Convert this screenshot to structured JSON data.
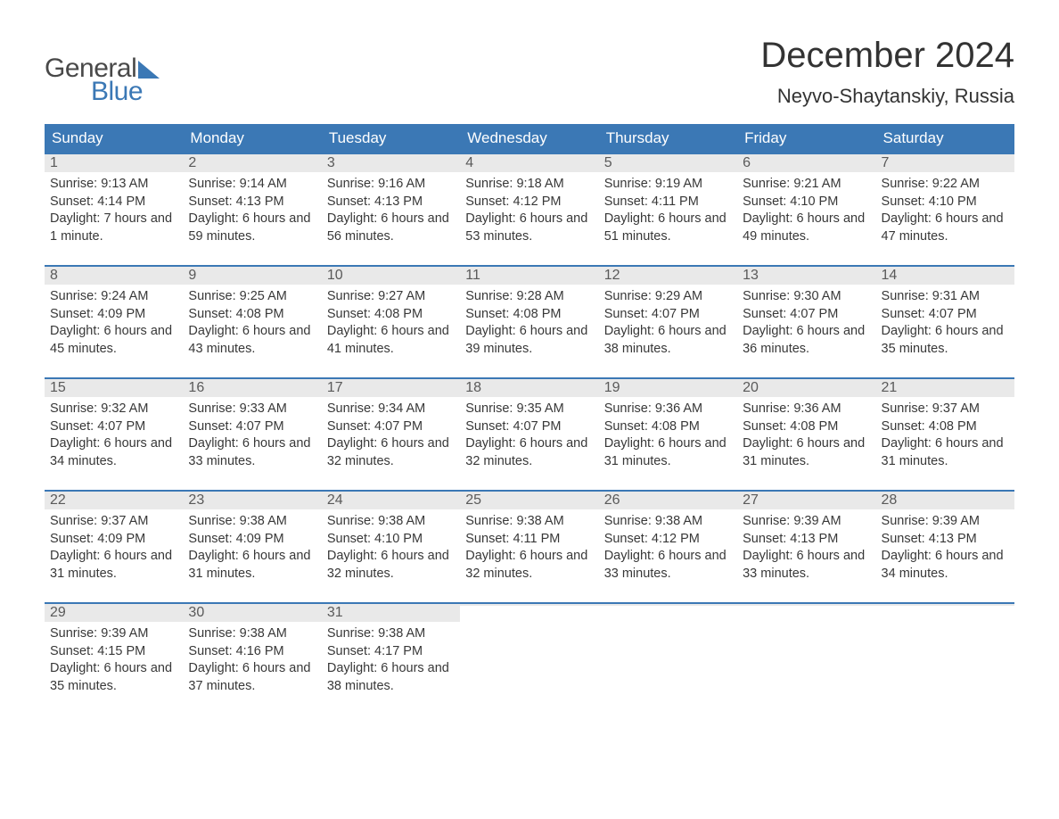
{
  "brand": {
    "word1": "General",
    "word2": "Blue"
  },
  "title": "December 2024",
  "location": "Neyvo-Shaytanskiy, Russia",
  "colors": {
    "brand_blue": "#3b78b5",
    "header_text": "#333333",
    "day_num_bg": "#e9e9e9",
    "body_text": "#383838",
    "background": "#ffffff"
  },
  "weekdays": [
    "Sunday",
    "Monday",
    "Tuesday",
    "Wednesday",
    "Thursday",
    "Friday",
    "Saturday"
  ],
  "weeks": [
    [
      {
        "n": "1",
        "sunrise": "Sunrise: 9:13 AM",
        "sunset": "Sunset: 4:14 PM",
        "daylight": "Daylight: 7 hours and 1 minute."
      },
      {
        "n": "2",
        "sunrise": "Sunrise: 9:14 AM",
        "sunset": "Sunset: 4:13 PM",
        "daylight": "Daylight: 6 hours and 59 minutes."
      },
      {
        "n": "3",
        "sunrise": "Sunrise: 9:16 AM",
        "sunset": "Sunset: 4:13 PM",
        "daylight": "Daylight: 6 hours and 56 minutes."
      },
      {
        "n": "4",
        "sunrise": "Sunrise: 9:18 AM",
        "sunset": "Sunset: 4:12 PM",
        "daylight": "Daylight: 6 hours and 53 minutes."
      },
      {
        "n": "5",
        "sunrise": "Sunrise: 9:19 AM",
        "sunset": "Sunset: 4:11 PM",
        "daylight": "Daylight: 6 hours and 51 minutes."
      },
      {
        "n": "6",
        "sunrise": "Sunrise: 9:21 AM",
        "sunset": "Sunset: 4:10 PM",
        "daylight": "Daylight: 6 hours and 49 minutes."
      },
      {
        "n": "7",
        "sunrise": "Sunrise: 9:22 AM",
        "sunset": "Sunset: 4:10 PM",
        "daylight": "Daylight: 6 hours and 47 minutes."
      }
    ],
    [
      {
        "n": "8",
        "sunrise": "Sunrise: 9:24 AM",
        "sunset": "Sunset: 4:09 PM",
        "daylight": "Daylight: 6 hours and 45 minutes."
      },
      {
        "n": "9",
        "sunrise": "Sunrise: 9:25 AM",
        "sunset": "Sunset: 4:08 PM",
        "daylight": "Daylight: 6 hours and 43 minutes."
      },
      {
        "n": "10",
        "sunrise": "Sunrise: 9:27 AM",
        "sunset": "Sunset: 4:08 PM",
        "daylight": "Daylight: 6 hours and 41 minutes."
      },
      {
        "n": "11",
        "sunrise": "Sunrise: 9:28 AM",
        "sunset": "Sunset: 4:08 PM",
        "daylight": "Daylight: 6 hours and 39 minutes."
      },
      {
        "n": "12",
        "sunrise": "Sunrise: 9:29 AM",
        "sunset": "Sunset: 4:07 PM",
        "daylight": "Daylight: 6 hours and 38 minutes."
      },
      {
        "n": "13",
        "sunrise": "Sunrise: 9:30 AM",
        "sunset": "Sunset: 4:07 PM",
        "daylight": "Daylight: 6 hours and 36 minutes."
      },
      {
        "n": "14",
        "sunrise": "Sunrise: 9:31 AM",
        "sunset": "Sunset: 4:07 PM",
        "daylight": "Daylight: 6 hours and 35 minutes."
      }
    ],
    [
      {
        "n": "15",
        "sunrise": "Sunrise: 9:32 AM",
        "sunset": "Sunset: 4:07 PM",
        "daylight": "Daylight: 6 hours and 34 minutes."
      },
      {
        "n": "16",
        "sunrise": "Sunrise: 9:33 AM",
        "sunset": "Sunset: 4:07 PM",
        "daylight": "Daylight: 6 hours and 33 minutes."
      },
      {
        "n": "17",
        "sunrise": "Sunrise: 9:34 AM",
        "sunset": "Sunset: 4:07 PM",
        "daylight": "Daylight: 6 hours and 32 minutes."
      },
      {
        "n": "18",
        "sunrise": "Sunrise: 9:35 AM",
        "sunset": "Sunset: 4:07 PM",
        "daylight": "Daylight: 6 hours and 32 minutes."
      },
      {
        "n": "19",
        "sunrise": "Sunrise: 9:36 AM",
        "sunset": "Sunset: 4:08 PM",
        "daylight": "Daylight: 6 hours and 31 minutes."
      },
      {
        "n": "20",
        "sunrise": "Sunrise: 9:36 AM",
        "sunset": "Sunset: 4:08 PM",
        "daylight": "Daylight: 6 hours and 31 minutes."
      },
      {
        "n": "21",
        "sunrise": "Sunrise: 9:37 AM",
        "sunset": "Sunset: 4:08 PM",
        "daylight": "Daylight: 6 hours and 31 minutes."
      }
    ],
    [
      {
        "n": "22",
        "sunrise": "Sunrise: 9:37 AM",
        "sunset": "Sunset: 4:09 PM",
        "daylight": "Daylight: 6 hours and 31 minutes."
      },
      {
        "n": "23",
        "sunrise": "Sunrise: 9:38 AM",
        "sunset": "Sunset: 4:09 PM",
        "daylight": "Daylight: 6 hours and 31 minutes."
      },
      {
        "n": "24",
        "sunrise": "Sunrise: 9:38 AM",
        "sunset": "Sunset: 4:10 PM",
        "daylight": "Daylight: 6 hours and 32 minutes."
      },
      {
        "n": "25",
        "sunrise": "Sunrise: 9:38 AM",
        "sunset": "Sunset: 4:11 PM",
        "daylight": "Daylight: 6 hours and 32 minutes."
      },
      {
        "n": "26",
        "sunrise": "Sunrise: 9:38 AM",
        "sunset": "Sunset: 4:12 PM",
        "daylight": "Daylight: 6 hours and 33 minutes."
      },
      {
        "n": "27",
        "sunrise": "Sunrise: 9:39 AM",
        "sunset": "Sunset: 4:13 PM",
        "daylight": "Daylight: 6 hours and 33 minutes."
      },
      {
        "n": "28",
        "sunrise": "Sunrise: 9:39 AM",
        "sunset": "Sunset: 4:13 PM",
        "daylight": "Daylight: 6 hours and 34 minutes."
      }
    ],
    [
      {
        "n": "29",
        "sunrise": "Sunrise: 9:39 AM",
        "sunset": "Sunset: 4:15 PM",
        "daylight": "Daylight: 6 hours and 35 minutes."
      },
      {
        "n": "30",
        "sunrise": "Sunrise: 9:38 AM",
        "sunset": "Sunset: 4:16 PM",
        "daylight": "Daylight: 6 hours and 37 minutes."
      },
      {
        "n": "31",
        "sunrise": "Sunrise: 9:38 AM",
        "sunset": "Sunset: 4:17 PM",
        "daylight": "Daylight: 6 hours and 38 minutes."
      },
      {
        "n": "",
        "sunrise": "",
        "sunset": "",
        "daylight": ""
      },
      {
        "n": "",
        "sunrise": "",
        "sunset": "",
        "daylight": ""
      },
      {
        "n": "",
        "sunrise": "",
        "sunset": "",
        "daylight": ""
      },
      {
        "n": "",
        "sunrise": "",
        "sunset": "",
        "daylight": ""
      }
    ]
  ]
}
